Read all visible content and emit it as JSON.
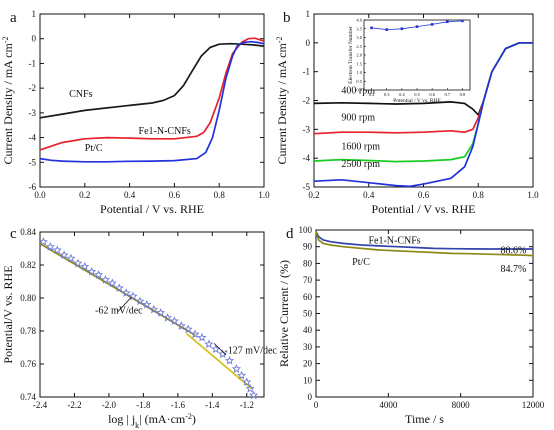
{
  "chart_data": [
    {
      "panel": "a",
      "type": "line",
      "xlabel": "Potential / V vs. RHE",
      "ylabel": "Current Density / mA cm",
      "ylabel_sup": "-2",
      "xlim": [
        0.0,
        1.0
      ],
      "ylim": [
        -6,
        1
      ],
      "xticks": [
        "0.0",
        "0.2",
        "0.4",
        "0.6",
        "0.8",
        "1.0"
      ],
      "yticks": [
        "1",
        "0",
        "-1",
        "-2",
        "-3",
        "-4",
        "-5",
        "-6"
      ],
      "annotations": [
        {
          "text": "CNFs",
          "x": 0.13,
          "y": -2.35
        },
        {
          "text": "Fe1-N-CNFs",
          "x": 0.44,
          "y": -3.85
        },
        {
          "text": "Pt/C",
          "x": 0.2,
          "y": -4.55
        }
      ],
      "series": [
        {
          "name": "CNFs",
          "color": "#1a1a1a",
          "x": [
            0,
            0.1,
            0.2,
            0.3,
            0.4,
            0.5,
            0.55,
            0.6,
            0.64,
            0.68,
            0.72,
            0.76,
            0.8,
            0.85,
            0.9,
            0.95,
            1.0
          ],
          "y": [
            -3.2,
            -3.05,
            -2.9,
            -2.8,
            -2.7,
            -2.6,
            -2.5,
            -2.3,
            -1.9,
            -1.3,
            -0.7,
            -0.35,
            -0.22,
            -0.2,
            -0.22,
            -0.25,
            -0.3
          ]
        },
        {
          "name": "Fe1-N-CNFs",
          "color": "#e8202a",
          "x": [
            0,
            0.05,
            0.1,
            0.2,
            0.3,
            0.4,
            0.5,
            0.6,
            0.7,
            0.73,
            0.76,
            0.8,
            0.83,
            0.86,
            0.9,
            0.93,
            0.96,
            1.0
          ],
          "y": [
            -4.5,
            -4.35,
            -4.2,
            -4.05,
            -4.0,
            -4.02,
            -4.05,
            -4.05,
            -3.95,
            -3.8,
            -3.4,
            -2.4,
            -1.4,
            -0.6,
            -0.15,
            0.0,
            0.02,
            -0.1
          ]
        },
        {
          "name": "Pt/C",
          "color": "#2233dd",
          "x": [
            0,
            0.05,
            0.1,
            0.2,
            0.3,
            0.4,
            0.5,
            0.6,
            0.7,
            0.74,
            0.77,
            0.8,
            0.83,
            0.86,
            0.88,
            0.91,
            0.94,
            0.97,
            1.0
          ],
          "y": [
            -4.85,
            -4.92,
            -4.95,
            -4.98,
            -4.98,
            -4.96,
            -4.95,
            -4.93,
            -4.85,
            -4.6,
            -4.0,
            -2.9,
            -1.6,
            -0.7,
            -0.3,
            -0.15,
            -0.12,
            -0.15,
            -0.2
          ]
        }
      ]
    },
    {
      "panel": "b",
      "type": "line",
      "xlabel": "Potential / V vs. RHE",
      "ylabel": "Current Density / mA cm",
      "ylabel_sup": "-2",
      "xlim": [
        0.2,
        1.0
      ],
      "ylim": [
        -5,
        1
      ],
      "xticks": [
        "0.2",
        "0.4",
        "0.6",
        "0.8",
        "1.0"
      ],
      "yticks": [
        "1",
        "0",
        "-1",
        "-2",
        "-3",
        "-4",
        "-5"
      ],
      "annotations": [
        {
          "text": "400 rpm",
          "x": 0.3,
          "y": -1.75
        },
        {
          "text": "900 rpm",
          "x": 0.3,
          "y": -2.7
        },
        {
          "text": "1600 rpm",
          "x": 0.3,
          "y": -3.7
        },
        {
          "text": "2500 rpm",
          "x": 0.3,
          "y": -4.3
        }
      ],
      "series": [
        {
          "name": "400 rpm",
          "color": "#111111",
          "x": [
            0.2,
            0.3,
            0.4,
            0.5,
            0.6,
            0.7,
            0.75,
            0.78,
            0.8,
            0.82,
            0.85,
            0.9,
            0.95,
            1.0
          ],
          "y": [
            -2.1,
            -2.08,
            -2.1,
            -2.12,
            -2.1,
            -2.05,
            -2.1,
            -2.3,
            -2.5,
            -2.0,
            -1.0,
            -0.2,
            0.0,
            0.0
          ]
        },
        {
          "name": "900 rpm",
          "color": "#e8202a",
          "x": [
            0.2,
            0.3,
            0.4,
            0.5,
            0.6,
            0.7,
            0.75,
            0.78,
            0.8,
            0.82,
            0.85,
            0.9,
            0.95,
            1.0
          ],
          "y": [
            -3.15,
            -3.1,
            -3.1,
            -3.12,
            -3.1,
            -3.05,
            -3.1,
            -3.0,
            -2.6,
            -2.0,
            -1.0,
            -0.2,
            0.0,
            0.0
          ]
        },
        {
          "name": "1600 rpm",
          "color": "#18cc22",
          "x": [
            0.2,
            0.3,
            0.4,
            0.5,
            0.6,
            0.7,
            0.75,
            0.78,
            0.8,
            0.82,
            0.85,
            0.9,
            0.95,
            1.0
          ],
          "y": [
            -4.1,
            -4.05,
            -4.08,
            -4.12,
            -4.1,
            -4.05,
            -3.95,
            -3.5,
            -2.8,
            -2.0,
            -1.0,
            -0.2,
            0.0,
            0.0
          ]
        },
        {
          "name": "2500 rpm",
          "color": "#2233dd",
          "x": [
            0.2,
            0.3,
            0.4,
            0.5,
            0.55,
            0.6,
            0.7,
            0.75,
            0.78,
            0.8,
            0.82,
            0.85,
            0.9,
            0.95,
            1.0
          ],
          "y": [
            -4.8,
            -4.75,
            -4.85,
            -4.95,
            -4.98,
            -4.9,
            -4.7,
            -4.3,
            -3.6,
            -2.8,
            -2.0,
            -1.0,
            -0.2,
            0.0,
            0.0
          ]
        }
      ],
      "inset": {
        "type": "line",
        "ylabel": "Electron Transfer Number",
        "xlabel": "Potential / V vs. RHE",
        "xlim": [
          0.15,
          0.85
        ],
        "ylim": [
          0.0,
          4.0
        ],
        "xticks": [
          "0.2",
          "0.3",
          "0.4",
          "0.5",
          "0.6",
          "0.7",
          "0.8"
        ],
        "yticks": [
          "0.0",
          "0.5",
          "1.0",
          "1.5",
          "2.0",
          "2.5",
          "3.0",
          "3.5",
          "4.0"
        ],
        "color": "#2233dd",
        "x": [
          0.2,
          0.3,
          0.4,
          0.5,
          0.6,
          0.7,
          0.8
        ],
        "y": [
          3.55,
          3.45,
          3.5,
          3.62,
          3.75,
          3.9,
          3.95
        ]
      }
    },
    {
      "panel": "c",
      "type": "scatter",
      "xlabel": "log | j",
      "xlabel_sub": "k",
      "xlabel_tail": "| (mA·cm",
      "xlabel_sup": "-2",
      "ylabel": "Potential/V vs. RHE",
      "xlim": [
        -2.4,
        -1.1
      ],
      "ylim": [
        0.74,
        0.84
      ],
      "xticks": [
        "-2.4",
        "-2.2",
        "-2.0",
        "-1.8",
        "-1.6",
        "-1.4",
        "-1.2"
      ],
      "yticks": [
        "0.84",
        "0.82",
        "0.80",
        "0.78",
        "0.76",
        "0.74"
      ],
      "annotations": [
        {
          "text": "-62 mV/dec",
          "x": -2.08,
          "y": 0.7905
        },
        {
          "text": "-127 mV/dec",
          "x": -1.33,
          "y": 0.7665
        }
      ],
      "fits": [
        {
          "color": "#8a8a18",
          "x": [
            -2.4,
            -1.5
          ],
          "y": [
            0.833,
            0.7775
          ]
        },
        {
          "color": "#d6c21a",
          "x": [
            -1.55,
            -1.17
          ],
          "y": [
            0.7785,
            0.745
          ]
        }
      ],
      "marker_color": "#6c79d8",
      "x": [
        -2.38,
        -2.34,
        -2.3,
        -2.26,
        -2.22,
        -2.18,
        -2.14,
        -2.1,
        -2.06,
        -2.02,
        -1.98,
        -1.94,
        -1.9,
        -1.86,
        -1.82,
        -1.78,
        -1.74,
        -1.7,
        -1.66,
        -1.62,
        -1.58,
        -1.54,
        -1.5,
        -1.46,
        -1.42,
        -1.38,
        -1.34,
        -1.3,
        -1.26,
        -1.23,
        -1.2,
        -1.18,
        -1.16
      ],
      "y": [
        0.834,
        0.831,
        0.829,
        0.826,
        0.824,
        0.821,
        0.819,
        0.816,
        0.814,
        0.811,
        0.809,
        0.806,
        0.803,
        0.801,
        0.798,
        0.796,
        0.793,
        0.791,
        0.788,
        0.786,
        0.783,
        0.781,
        0.778,
        0.776,
        0.772,
        0.769,
        0.766,
        0.762,
        0.757,
        0.753,
        0.749,
        0.745,
        0.741
      ]
    },
    {
      "panel": "d",
      "type": "line",
      "xlabel": "Time / s",
      "ylabel": "Relative Current / (%)",
      "xlim": [
        0,
        12000
      ],
      "ylim": [
        0,
        100
      ],
      "xticks": [
        "0",
        "4000",
        "8000",
        "12000"
      ],
      "yticks": [
        "0",
        "10",
        "20",
        "30",
        "40",
        "50",
        "60",
        "70",
        "80",
        "90",
        "100"
      ],
      "annotations": [
        {
          "text": "Fe1-N-CNFs",
          "x": 2900,
          "y": 92
        },
        {
          "text": "Pt/C",
          "x": 2000,
          "y": 79
        },
        {
          "text": "88.6%",
          "x": 10200,
          "y": 86
        },
        {
          "text": "84.7%",
          "x": 10200,
          "y": 75
        }
      ],
      "series": [
        {
          "name": "Fe1-N-CNFs",
          "color": "#3344aa",
          "x": [
            0,
            150,
            400,
            800,
            1500,
            2500,
            3500,
            4500,
            5500,
            6500,
            7500,
            8500,
            9500,
            10500,
            11500,
            12000
          ],
          "y": [
            99,
            96,
            94,
            93,
            92,
            91,
            90.5,
            90,
            89.5,
            89,
            88.8,
            88.7,
            88.6,
            88.6,
            88.6,
            88.6
          ]
        },
        {
          "name": "Pt/C",
          "color": "#8a8a18",
          "x": [
            0,
            150,
            400,
            800,
            1500,
            2500,
            3500,
            4500,
            5500,
            6500,
            7500,
            8500,
            9500,
            10500,
            11500,
            12000
          ],
          "y": [
            99,
            94,
            92,
            91,
            90,
            89,
            88,
            87.5,
            87,
            86.5,
            86,
            85.8,
            85.5,
            85.2,
            84.9,
            84.7
          ]
        }
      ]
    }
  ]
}
